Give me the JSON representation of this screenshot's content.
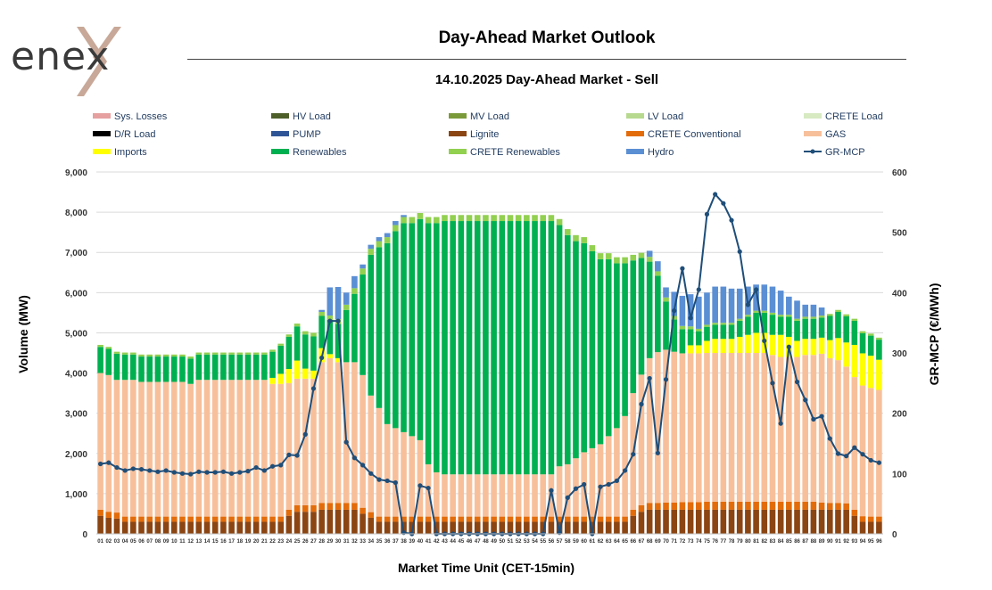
{
  "header": {
    "logo_text": "enex",
    "title": "Day-Ahead Market Outlook",
    "subtitle": "14.10.2025  Day-Ahead Market - Sell"
  },
  "chart_data": {
    "type": "stacked-bar+line",
    "xlabel": "Market Time Unit (CET-15min)",
    "ylabel": "Volume (MW)",
    "y2label": "GR-MCP (€/MWh)",
    "ylim": [
      0,
      9000
    ],
    "y2lim": [
      0,
      600
    ],
    "yticks": [
      "0",
      "1,000",
      "2,000",
      "3,000",
      "4,000",
      "5,000",
      "6,000",
      "7,000",
      "8,000",
      "9,000"
    ],
    "y2ticks": [
      "0",
      "100",
      "200",
      "300",
      "400",
      "500",
      "600"
    ],
    "categories": [
      "01",
      "02",
      "03",
      "04",
      "05",
      "06",
      "07",
      "08",
      "09",
      "10",
      "11",
      "12",
      "13",
      "14",
      "15",
      "16",
      "17",
      "18",
      "19",
      "20",
      "21",
      "22",
      "23",
      "24",
      "25",
      "26",
      "27",
      "28",
      "29",
      "30",
      "31",
      "32",
      "33",
      "34",
      "35",
      "36",
      "37",
      "38",
      "39",
      "40",
      "41",
      "42",
      "43",
      "44",
      "45",
      "46",
      "47",
      "48",
      "49",
      "50",
      "51",
      "52",
      "53",
      "54",
      "55",
      "56",
      "57",
      "58",
      "59",
      "60",
      "61",
      "62",
      "63",
      "64",
      "65",
      "66",
      "67",
      "68",
      "69",
      "70",
      "71",
      "72",
      "73",
      "74",
      "75",
      "76",
      "77",
      "78",
      "79",
      "80",
      "81",
      "82",
      "83",
      "84",
      "85",
      "86",
      "87",
      "88",
      "89",
      "90",
      "91",
      "92",
      "93",
      "94",
      "95",
      "96"
    ],
    "legend": [
      {
        "name": "Sys. Losses",
        "color": "#e6a0a0"
      },
      {
        "name": "HV Load",
        "color": "#4e5f2a"
      },
      {
        "name": "MV Load",
        "color": "#7a9a3a"
      },
      {
        "name": "LV Load",
        "color": "#b7d98f"
      },
      {
        "name": "CRETE Load",
        "color": "#d7eac2"
      },
      {
        "name": "D/R Load",
        "color": "#000000"
      },
      {
        "name": "PUMP",
        "color": "#2f5597"
      },
      {
        "name": "Lignite",
        "color": "#8b4513"
      },
      {
        "name": "CRETE Conventional",
        "color": "#e36c0a"
      },
      {
        "name": "GAS",
        "color": "#f7c09b"
      },
      {
        "name": "Imports",
        "color": "#ffff00"
      },
      {
        "name": "Renewables",
        "color": "#00b050"
      },
      {
        "name": "CRETE Renewables",
        "color": "#92d050"
      },
      {
        "name": "Hydro",
        "color": "#5b8fd4"
      },
      {
        "name": "GR-MCP",
        "color": "#1f4e79"
      }
    ],
    "series": [
      {
        "name": "Lignite",
        "values": [
          450,
          400,
          380,
          300,
          300,
          300,
          300,
          300,
          300,
          300,
          300,
          300,
          300,
          300,
          300,
          300,
          300,
          300,
          300,
          300,
          300,
          300,
          300,
          450,
          550,
          550,
          550,
          600,
          600,
          600,
          600,
          600,
          500,
          400,
          300,
          300,
          300,
          300,
          300,
          300,
          300,
          300,
          300,
          300,
          300,
          300,
          300,
          300,
          300,
          300,
          300,
          300,
          300,
          300,
          300,
          300,
          300,
          300,
          300,
          300,
          300,
          300,
          300,
          300,
          300,
          450,
          550,
          600,
          600,
          600,
          600,
          600,
          600,
          600,
          600,
          600,
          600,
          600,
          600,
          600,
          600,
          600,
          600,
          600,
          600,
          600,
          600,
          600,
          600,
          600,
          600,
          600,
          450,
          300,
          300,
          300
        ]
      },
      {
        "name": "CRETE Conventional",
        "values": [
          150,
          150,
          150,
          130,
          130,
          130,
          130,
          130,
          130,
          130,
          130,
          130,
          130,
          130,
          130,
          130,
          130,
          130,
          130,
          130,
          130,
          130,
          130,
          150,
          160,
          160,
          160,
          170,
          170,
          170,
          170,
          170,
          150,
          140,
          130,
          130,
          130,
          130,
          130,
          130,
          130,
          130,
          130,
          130,
          130,
          130,
          130,
          130,
          130,
          130,
          130,
          130,
          130,
          130,
          130,
          130,
          130,
          130,
          130,
          130,
          130,
          130,
          130,
          130,
          130,
          150,
          160,
          170,
          170,
          180,
          180,
          190,
          190,
          190,
          200,
          200,
          200,
          200,
          200,
          200,
          200,
          200,
          200,
          200,
          200,
          200,
          200,
          200,
          180,
          170,
          170,
          160,
          150,
          140,
          130,
          130
        ]
      },
      {
        "name": "GAS",
        "values": [
          3400,
          3400,
          3300,
          3400,
          3400,
          3350,
          3350,
          3350,
          3350,
          3350,
          3350,
          3300,
          3400,
          3400,
          3400,
          3400,
          3400,
          3400,
          3400,
          3400,
          3400,
          3300,
          3300,
          3150,
          3150,
          3150,
          3150,
          3500,
          3600,
          3500,
          3500,
          3500,
          3300,
          2900,
          2700,
          2300,
          2200,
          2100,
          2000,
          1900,
          1300,
          1100,
          1050,
          1050,
          1050,
          1050,
          1050,
          1050,
          1050,
          1050,
          1050,
          1050,
          1050,
          1050,
          1050,
          1050,
          1250,
          1300,
          1450,
          1600,
          1700,
          1800,
          2000,
          2200,
          2500,
          2900,
          3250,
          3600,
          3750,
          3800,
          3750,
          3700,
          3700,
          3700,
          3700,
          3700,
          3700,
          3700,
          3700,
          3700,
          3700,
          3700,
          3650,
          3600,
          3600,
          3600,
          3650,
          3650,
          3700,
          3600,
          3550,
          3400,
          3300,
          3250,
          3200,
          3150
        ]
      },
      {
        "name": "Imports",
        "values": [
          0,
          0,
          0,
          0,
          0,
          0,
          0,
          0,
          0,
          0,
          0,
          0,
          0,
          0,
          0,
          0,
          0,
          0,
          0,
          0,
          0,
          150,
          250,
          350,
          450,
          250,
          200,
          350,
          100,
          100,
          0,
          0,
          0,
          0,
          0,
          0,
          0,
          0,
          0,
          0,
          0,
          0,
          0,
          0,
          0,
          0,
          0,
          0,
          0,
          0,
          0,
          0,
          0,
          0,
          0,
          0,
          0,
          0,
          0,
          0,
          0,
          0,
          0,
          0,
          0,
          0,
          0,
          0,
          0,
          0,
          0,
          0,
          200,
          200,
          300,
          350,
          350,
          350,
          400,
          450,
          500,
          500,
          500,
          550,
          500,
          400,
          400,
          400,
          400,
          450,
          550,
          600,
          800,
          800,
          800,
          750
        ]
      },
      {
        "name": "Renewables",
        "values": [
          650,
          650,
          650,
          630,
          630,
          630,
          630,
          630,
          630,
          630,
          630,
          630,
          630,
          630,
          630,
          630,
          630,
          630,
          630,
          630,
          630,
          650,
          700,
          800,
          850,
          850,
          850,
          800,
          850,
          850,
          1300,
          1700,
          2500,
          3500,
          4000,
          4500,
          4900,
          5200,
          5300,
          5500,
          6000,
          6200,
          6300,
          6300,
          6300,
          6300,
          6300,
          6300,
          6300,
          6300,
          6300,
          6300,
          6300,
          6300,
          6300,
          6300,
          6000,
          5700,
          5400,
          5200,
          4900,
          4600,
          4400,
          4100,
          3800,
          3300,
          2900,
          2400,
          1900,
          1200,
          800,
          600,
          400,
          350,
          350,
          350,
          350,
          350,
          400,
          450,
          500,
          500,
          500,
          450,
          500,
          500,
          500,
          500,
          500,
          600,
          650,
          650,
          600,
          500,
          500,
          500
        ]
      },
      {
        "name": "CRETE Renewables",
        "values": [
          50,
          50,
          50,
          50,
          50,
          50,
          50,
          50,
          50,
          50,
          50,
          50,
          50,
          50,
          50,
          50,
          50,
          50,
          50,
          50,
          50,
          50,
          50,
          60,
          70,
          80,
          90,
          100,
          110,
          120,
          130,
          140,
          150,
          150,
          150,
          150,
          150,
          150,
          150,
          150,
          150,
          150,
          150,
          150,
          150,
          150,
          150,
          150,
          150,
          150,
          150,
          150,
          150,
          150,
          150,
          150,
          150,
          150,
          150,
          150,
          150,
          150,
          150,
          150,
          150,
          140,
          130,
          120,
          110,
          100,
          90,
          80,
          70,
          60,
          50,
          50,
          50,
          50,
          50,
          50,
          50,
          50,
          50,
          50,
          50,
          50,
          50,
          50,
          50,
          50,
          50,
          50,
          50,
          50,
          50,
          50
        ]
      },
      {
        "name": "Hydro",
        "values": [
          0,
          0,
          0,
          0,
          0,
          0,
          0,
          0,
          0,
          0,
          0,
          0,
          0,
          0,
          0,
          0,
          0,
          0,
          0,
          0,
          0,
          0,
          0,
          0,
          0,
          0,
          0,
          50,
          700,
          800,
          300,
          300,
          100,
          100,
          100,
          100,
          100,
          50,
          0,
          0,
          0,
          0,
          0,
          0,
          0,
          0,
          0,
          0,
          0,
          0,
          0,
          0,
          0,
          0,
          0,
          0,
          0,
          0,
          0,
          0,
          0,
          0,
          0,
          0,
          0,
          0,
          0,
          150,
          250,
          250,
          600,
          750,
          800,
          800,
          800,
          900,
          900,
          850,
          750,
          700,
          650,
          650,
          650,
          600,
          450,
          450,
          300,
          300,
          200,
          0,
          0,
          0,
          0,
          0,
          0,
          0
        ]
      }
    ],
    "line": {
      "name": "GR-MCP",
      "values": [
        116,
        118,
        110,
        105,
        108,
        107,
        105,
        103,
        105,
        102,
        100,
        99,
        103,
        102,
        102,
        103,
        100,
        102,
        104,
        110,
        105,
        112,
        114,
        131,
        130,
        165,
        241,
        292,
        353,
        353,
        152,
        126,
        114,
        100,
        90,
        88,
        85,
        2,
        0,
        80,
        76,
        0,
        0,
        0,
        0,
        0,
        0,
        0,
        0,
        0,
        0,
        0,
        0,
        0,
        0,
        72,
        2,
        60,
        75,
        82,
        0,
        78,
        82,
        88,
        105,
        132,
        215,
        258,
        134,
        256,
        370,
        440,
        358,
        405,
        530,
        563,
        548,
        520,
        468,
        380,
        405,
        320,
        250,
        183,
        310,
        252,
        222,
        190,
        195,
        158,
        133,
        129,
        143,
        132,
        122,
        118
      ]
    }
  }
}
